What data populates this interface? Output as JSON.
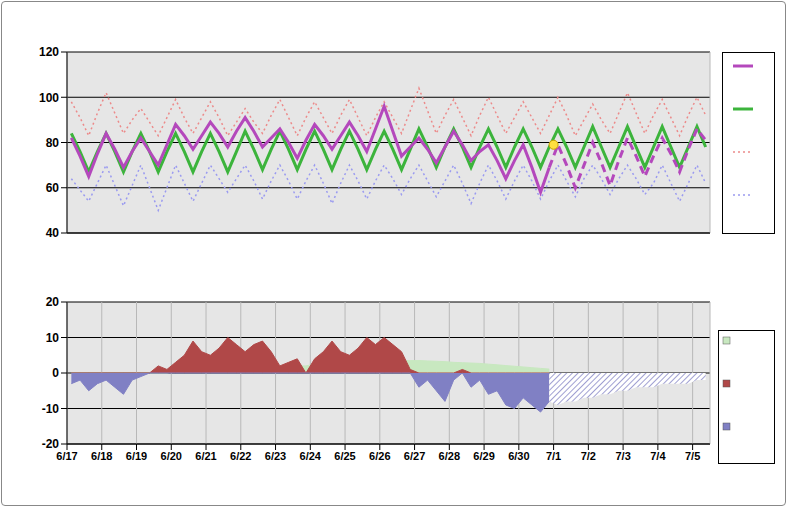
{
  "chart_data": [
    {
      "type": "line",
      "x": [
        0.125,
        0.375,
        0.625,
        0.875,
        1.125,
        1.375,
        1.625,
        1.875,
        2.125,
        2.375,
        2.625,
        2.875,
        3.125,
        3.375,
        3.625,
        3.875,
        4.125,
        4.375,
        4.625,
        4.875,
        5.125,
        5.375,
        5.625,
        5.875,
        6.125,
        6.375,
        6.625,
        6.875,
        7.125,
        7.375,
        7.625,
        7.875,
        8.125,
        8.375,
        8.625,
        8.875,
        9.125,
        9.375,
        9.625,
        9.875,
        10.125,
        10.375,
        10.625,
        10.875,
        11.125,
        11.375,
        11.625,
        11.875,
        12.125,
        12.375,
        12.625,
        12.875,
        13.125,
        13.375,
        13.625,
        13.875,
        14.125,
        14.375,
        14.625,
        14.875,
        15.125,
        15.375,
        15.625,
        15.875,
        16.125,
        16.375,
        16.625,
        16.875,
        17.125,
        17.375,
        17.625,
        17.875,
        18.125,
        18.375
      ],
      "xlim": [
        0,
        18.5
      ],
      "xticks": [
        0,
        1,
        2,
        3,
        4,
        5,
        6,
        7,
        8,
        9,
        10,
        11,
        12,
        13,
        14,
        15,
        16,
        17,
        18
      ],
      "ylim": [
        40,
        120
      ],
      "yticks": [
        40,
        60,
        80,
        100,
        120
      ],
      "grid": true,
      "tick_labels": "y",
      "series": [
        {
          "color": "#ec8a8a",
          "line_style": "dotted",
          "values": [
            98,
            91,
            83,
            93,
            102,
            93,
            84,
            90,
            95,
            89,
            83,
            91,
            99,
            91,
            84,
            91,
            98,
            91,
            83,
            89,
            95,
            89,
            84,
            92,
            99,
            91,
            83,
            91,
            98,
            91,
            84,
            92,
            99,
            91,
            83,
            91,
            98,
            91,
            84,
            94,
            104,
            94,
            84,
            92,
            99,
            91,
            83,
            92,
            100,
            92,
            84,
            91,
            98,
            91,
            84,
            92,
            100,
            92,
            83,
            90,
            97,
            90,
            84,
            93,
            102,
            93,
            84,
            92,
            99,
            91,
            83,
            92,
            100,
            92
          ]
        },
        {
          "color": "#9a9af0",
          "line_style": "dotted",
          "values": [
            64,
            59,
            54,
            62,
            70,
            61,
            52,
            61,
            70,
            60,
            50,
            60,
            70,
            62,
            54,
            62,
            70,
            64,
            58,
            64,
            70,
            63,
            55,
            63,
            70,
            63,
            55,
            63,
            70,
            62,
            53,
            62,
            70,
            63,
            55,
            63,
            70,
            64,
            57,
            64,
            70,
            63,
            56,
            63,
            70,
            62,
            53,
            62,
            70,
            63,
            55,
            63,
            70,
            63,
            55,
            63,
            70,
            63,
            56,
            64,
            70,
            64,
            57,
            64,
            70,
            64,
            57,
            62,
            70,
            62,
            54,
            62,
            70,
            62
          ]
        },
        {
          "color": "#3cb43c",
          "values": [
            84,
            76,
            67,
            76,
            84,
            76,
            67,
            76,
            84,
            76,
            67,
            76,
            84,
            76,
            67,
            76,
            84,
            76,
            67,
            76,
            85,
            77,
            68,
            77,
            85,
            77,
            68,
            77,
            85,
            77,
            68,
            77,
            85,
            77,
            68,
            77,
            85,
            77,
            68,
            77,
            86,
            78,
            69,
            78,
            86,
            78,
            69,
            78,
            86,
            78,
            69,
            78,
            86,
            78,
            69,
            78,
            86,
            78,
            69,
            78,
            87,
            78,
            69,
            78,
            87,
            78,
            69,
            78,
            87,
            78,
            69,
            78,
            87,
            78
          ]
        },
        {
          "color": "#b448bc",
          "values": [
            82,
            74,
            65,
            75,
            84,
            77,
            69,
            76,
            82,
            76,
            70,
            79,
            88,
            83,
            77,
            83,
            89,
            84,
            78,
            85,
            91,
            85,
            78,
            82,
            86,
            80,
            73,
            81,
            88,
            83,
            77,
            83,
            89,
            83,
            76,
            86,
            96,
            85,
            74,
            78,
            82,
            77,
            71,
            78,
            85,
            79,
            72,
            76,
            79,
            72,
            64,
            72,
            79,
            69,
            58,
            69,
            null,
            null,
            null,
            null,
            null,
            null,
            null,
            null,
            null,
            null,
            null,
            null,
            null,
            null,
            null,
            null,
            null,
            null
          ]
        },
        {
          "color": "#b448bc",
          "line_style": "dashed",
          "values": [
            null,
            null,
            null,
            null,
            null,
            null,
            null,
            null,
            null,
            null,
            null,
            null,
            null,
            null,
            null,
            null,
            null,
            null,
            null,
            null,
            null,
            null,
            null,
            null,
            null,
            null,
            null,
            null,
            null,
            null,
            null,
            null,
            null,
            null,
            null,
            null,
            null,
            null,
            null,
            null,
            null,
            null,
            null,
            null,
            null,
            null,
            null,
            null,
            null,
            null,
            null,
            null,
            null,
            null,
            null,
            69,
            79,
            70,
            60,
            70,
            80,
            71,
            61,
            72,
            82,
            74,
            65,
            74,
            82,
            75,
            67,
            77,
            86,
            81
          ]
        },
        {
          "type": "scatter",
          "color": "#ffe040",
          "x": [
            14
          ],
          "values": [
            79
          ]
        }
      ]
    },
    {
      "type": "area",
      "x": [
        0.125,
        0.375,
        0.625,
        0.875,
        1.125,
        1.375,
        1.625,
        1.875,
        2.125,
        2.375,
        2.625,
        2.875,
        3.125,
        3.375,
        3.625,
        3.875,
        4.125,
        4.375,
        4.625,
        4.875,
        5.125,
        5.375,
        5.625,
        5.875,
        6.125,
        6.375,
        6.625,
        6.875,
        7.125,
        7.375,
        7.625,
        7.875,
        8.125,
        8.375,
        8.625,
        8.875,
        9.125,
        9.375,
        9.625,
        9.875,
        10.125,
        10.375,
        10.625,
        10.875,
        11.125,
        11.375,
        11.625,
        11.875,
        12.125,
        12.375,
        12.625,
        12.875,
        13.125,
        13.375,
        13.625,
        13.875,
        14.125,
        14.375,
        14.625,
        14.875,
        15.125,
        15.375,
        15.625,
        15.875,
        16.125,
        16.375,
        16.625,
        16.875,
        17.125,
        17.375,
        17.625,
        17.875,
        18.125,
        18.375
      ],
      "xlim": [
        0,
        18.5
      ],
      "xticks": [
        {
          "value": 0,
          "label": "6/17"
        },
        {
          "value": 1,
          "label": "6/18"
        },
        {
          "value": 2,
          "label": "6/19"
        },
        {
          "value": 3,
          "label": "6/20"
        },
        {
          "value": 4,
          "label": "6/21"
        },
        {
          "value": 5,
          "label": "6/22"
        },
        {
          "value": 6,
          "label": "6/23"
        },
        {
          "value": 7,
          "label": "6/24"
        },
        {
          "value": 8,
          "label": "6/25"
        },
        {
          "value": 9,
          "label": "6/26"
        },
        {
          "value": 10,
          "label": "6/27"
        },
        {
          "value": 11,
          "label": "6/28"
        },
        {
          "value": 12,
          "label": "6/29"
        },
        {
          "value": 13,
          "label": "6/30"
        },
        {
          "value": 14,
          "label": "7/1"
        },
        {
          "value": 15,
          "label": "7/2"
        },
        {
          "value": 16,
          "label": "7/3"
        },
        {
          "value": 17,
          "label": "7/4"
        },
        {
          "value": 18,
          "label": "7/5"
        }
      ],
      "ylim": [
        -20,
        20
      ],
      "yticks": [
        -20,
        -10,
        0,
        10,
        20
      ],
      "grid": true,
      "series": [
        {
          "color": "#c8e8c0",
          "values": [
            0,
            0,
            0,
            0,
            0,
            0,
            0,
            0,
            0,
            0,
            0,
            0,
            0.5,
            0.5,
            0.5,
            0.5,
            1,
            1,
            1,
            1,
            1.5,
            1.5,
            1.5,
            1.5,
            2,
            2,
            2,
            2,
            2.5,
            2.5,
            2.5,
            2.5,
            3,
            3,
            3,
            3,
            3.5,
            3.5,
            3.5,
            3.5,
            3.5,
            3.4,
            3.3,
            3.2,
            3,
            2.9,
            2.8,
            2.7,
            2.5,
            2.3,
            2.1,
            1.9,
            1.7,
            1.5,
            1.3,
            1.1,
            null,
            null,
            null,
            null,
            null,
            null,
            null,
            null,
            null,
            null,
            null,
            null,
            null,
            null,
            null,
            null,
            null,
            null
          ]
        },
        {
          "color": "#b04848",
          "values": [
            0,
            0,
            0,
            0,
            0,
            0,
            0,
            0,
            0,
            0,
            2,
            1,
            3,
            5,
            9,
            6,
            5,
            7,
            10,
            8,
            6,
            8,
            9,
            6,
            2,
            3,
            4,
            0,
            4,
            6,
            9,
            6,
            5,
            7,
            10,
            8,
            10,
            8,
            6,
            1,
            0,
            0,
            0,
            0,
            0,
            1,
            0,
            0,
            0,
            0,
            0,
            0,
            0,
            0,
            0,
            0,
            null,
            null,
            null,
            null,
            null,
            null,
            null,
            null,
            null,
            null,
            null,
            null,
            null,
            null,
            null,
            null,
            null,
            null
          ]
        },
        {
          "color": "#8080c4",
          "values": [
            -3,
            -2,
            -5,
            -3,
            -2,
            -4,
            -6,
            -2,
            -1,
            0,
            0,
            0,
            0,
            0,
            0,
            0,
            0,
            0,
            0,
            0,
            0,
            0,
            0,
            0,
            0,
            0,
            0,
            0,
            0,
            0,
            0,
            0,
            0,
            0,
            0,
            0,
            0,
            0,
            0,
            0,
            -4,
            -2,
            -5,
            -8,
            -2,
            0,
            -4,
            -2,
            -6,
            -5,
            -9,
            -10,
            -7,
            -9,
            -11,
            -8,
            null,
            null,
            null,
            null,
            null,
            null,
            null,
            null,
            null,
            null,
            null,
            null,
            null,
            null,
            null,
            null,
            null,
            null
          ]
        },
        {
          "color": "#8080c4",
          "line_style": "hatched",
          "values": [
            null,
            null,
            null,
            null,
            null,
            null,
            null,
            null,
            null,
            null,
            null,
            null,
            null,
            null,
            null,
            null,
            null,
            null,
            null,
            null,
            null,
            null,
            null,
            null,
            null,
            null,
            null,
            null,
            null,
            null,
            null,
            null,
            null,
            null,
            null,
            null,
            null,
            null,
            null,
            null,
            null,
            null,
            null,
            null,
            null,
            null,
            null,
            null,
            null,
            null,
            null,
            null,
            null,
            null,
            null,
            -8,
            -9,
            -8,
            -8,
            -7,
            -7,
            -6,
            -6,
            -5,
            -5,
            -4,
            -4,
            -4,
            -3,
            -3,
            -3,
            -3,
            -2,
            -2
          ]
        }
      ]
    }
  ]
}
